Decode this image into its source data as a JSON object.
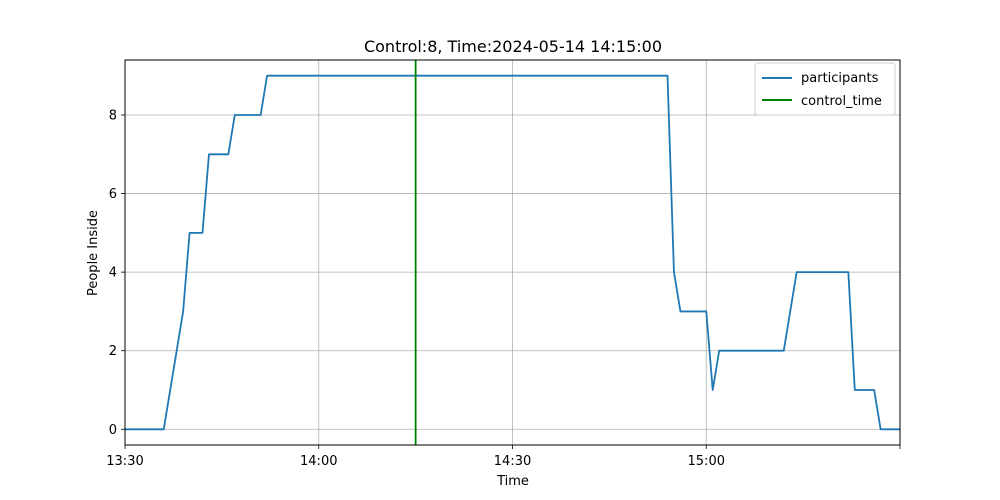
{
  "chart_data": {
    "type": "line",
    "title": "Control:8, Time:2024-05-14 14:15:00",
    "xlabel": "Time",
    "ylabel": "People Inside",
    "x_unit": "time of day (HH:MM)",
    "xlim": [
      "13:30",
      "15:30"
    ],
    "ylim": [
      -0.4,
      9.4
    ],
    "x_ticks": [
      "13:30",
      "14:00",
      "14:30",
      "15:00",
      "15:30"
    ],
    "x_tick_labels": [
      "13:30",
      "14:00",
      "14:30",
      "15:00",
      ""
    ],
    "y_ticks": [
      0,
      2,
      4,
      6,
      8
    ],
    "grid": true,
    "legend_position": "top-right",
    "series": [
      {
        "name": "participants",
        "color": "#1f77b4",
        "points": [
          [
            "13:30",
            0
          ],
          [
            "13:36",
            0
          ],
          [
            "13:39",
            3
          ],
          [
            "13:40",
            5
          ],
          [
            "13:42",
            5
          ],
          [
            "13:43",
            7
          ],
          [
            "13:46",
            7
          ],
          [
            "13:47",
            8
          ],
          [
            "13:51",
            8
          ],
          [
            "13:52",
            9
          ],
          [
            "14:54",
            9
          ],
          [
            "14:55",
            4
          ],
          [
            "14:56",
            3
          ],
          [
            "15:00",
            3
          ],
          [
            "15:01",
            1
          ],
          [
            "15:02",
            2
          ],
          [
            "15:12",
            2
          ],
          [
            "15:14",
            4
          ],
          [
            "15:22",
            4
          ],
          [
            "15:23",
            1
          ],
          [
            "15:26",
            1
          ],
          [
            "15:27",
            0
          ],
          [
            "15:30",
            0
          ]
        ]
      }
    ],
    "vlines": [
      {
        "name": "control_time",
        "x": "14:15",
        "color": "#008000"
      }
    ]
  }
}
